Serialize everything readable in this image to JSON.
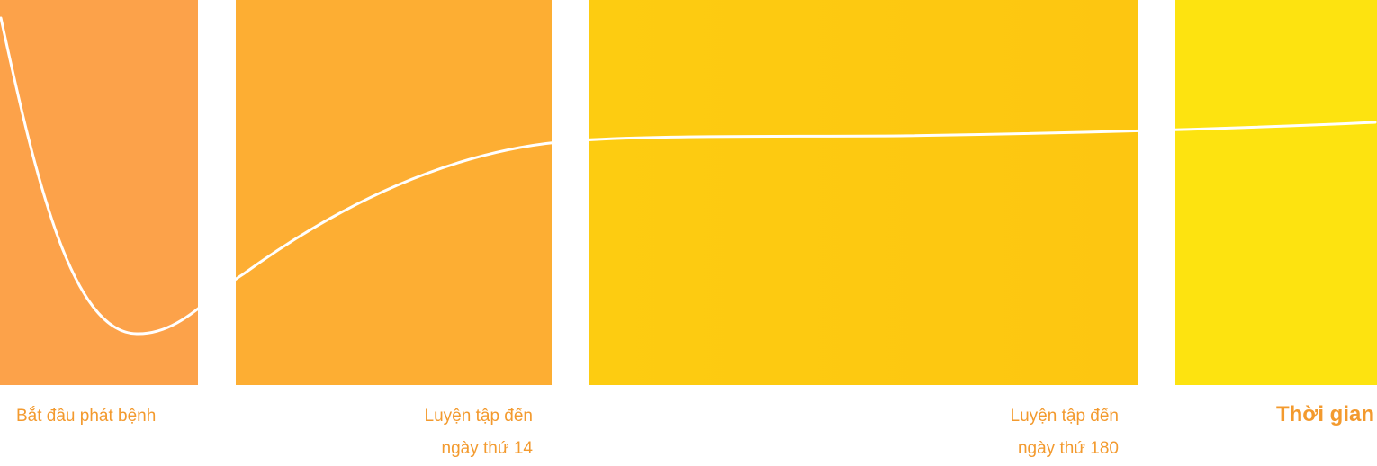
{
  "colors": {
    "band_1": "#fca24a",
    "band_2": "#fdae33",
    "band_3_start": "#fdcc11",
    "band_3_end": "#fdc611",
    "band_4": "#fde310",
    "curve": "#ffffff",
    "label_text": "#f39a2e"
  },
  "labels": {
    "start": "Bắt đầu phát bệnh",
    "day14_line1": "Luyện tập đến",
    "day14_line2": "ngày thứ 14",
    "day180_line1": "Luyện tập đến",
    "day180_line2": "ngày thứ 180",
    "time_axis": "Thời gian"
  }
}
